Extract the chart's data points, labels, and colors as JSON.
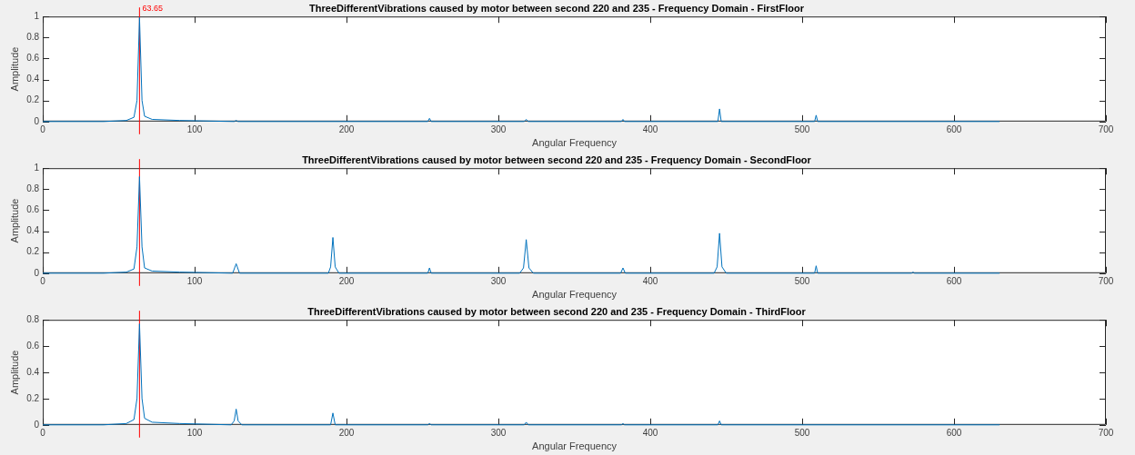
{
  "chart_data": [
    {
      "type": "line",
      "title": "ThreeDifferentVibrations caused by motor between second 220 and 235 - Frequency Domain - FirstFloor",
      "xlabel": "Angular Frequency",
      "ylabel": "Amplitude",
      "xlim": [
        0,
        700
      ],
      "xticks": [
        0,
        100,
        200,
        300,
        400,
        500,
        600,
        700
      ],
      "ylim": [
        0,
        1
      ],
      "yticks": [
        0,
        0.2,
        0.4,
        0.6,
        0.8,
        1
      ],
      "grid": false,
      "legend": false,
      "marker": "none",
      "line_style": "solid",
      "series": [
        {
          "color": "#0072bd",
          "x": [
            0,
            40,
            55,
            60,
            62,
            63.65,
            65.3,
            67,
            72,
            90,
            126,
            127.3,
            128.5,
            253.5,
            254.6,
            255.7,
            317,
            318.3,
            319.6,
            381,
            382,
            383,
            444.5,
            445.6,
            446.7,
            508.2,
            509.2,
            510.2,
            630
          ],
          "values": [
            0,
            0,
            0.01,
            0.04,
            0.2,
            0.99,
            0.2,
            0.05,
            0.02,
            0.01,
            0,
            0.01,
            0,
            0,
            0.03,
            0,
            0,
            0.02,
            0,
            0,
            0.02,
            0,
            0,
            0.12,
            0,
            0,
            0.06,
            0,
            0
          ]
        }
      ],
      "ref_lines": [
        {
          "axis": "x",
          "value": 63.65,
          "color": "#ff0000"
        }
      ],
      "annotations": [
        {
          "text": "63.65",
          "x": 63.65,
          "y": 0.99
        }
      ]
    },
    {
      "type": "line",
      "title": "ThreeDifferentVibrations caused by motor between second 220 and 235 - Frequency Domain - SecondFloor",
      "xlabel": "Angular Frequency",
      "ylabel": "Amplitude",
      "xlim": [
        0,
        700
      ],
      "xticks": [
        0,
        100,
        200,
        300,
        400,
        500,
        600,
        700
      ],
      "ylim": [
        0,
        1
      ],
      "yticks": [
        0,
        0.2,
        0.4,
        0.6,
        0.8,
        1
      ],
      "grid": false,
      "legend": false,
      "marker": "none",
      "line_style": "solid",
      "series": [
        {
          "color": "#0072bd",
          "x": [
            0,
            40,
            55,
            60,
            62,
            63.65,
            65.3,
            67,
            72,
            90,
            125,
            127.3,
            129.5,
            188,
            189.5,
            191,
            192.5,
            195,
            253.5,
            254.6,
            255.7,
            314,
            316.5,
            318.3,
            320.1,
            323,
            380.5,
            382,
            383.5,
            442,
            444,
            445.6,
            447.2,
            450,
            508.2,
            509.2,
            510.2,
            572,
            573,
            574,
            630
          ],
          "values": [
            0,
            0,
            0.01,
            0.04,
            0.25,
            0.92,
            0.25,
            0.05,
            0.02,
            0.01,
            0,
            0.09,
            0,
            0,
            0.06,
            0.34,
            0.06,
            0,
            0,
            0.05,
            0,
            0,
            0.05,
            0.32,
            0.05,
            0,
            0,
            0.05,
            0,
            0,
            0.06,
            0.38,
            0.06,
            0,
            0,
            0.07,
            0,
            0,
            0.01,
            0,
            0
          ]
        }
      ],
      "ref_lines": [
        {
          "axis": "x",
          "value": 63.65,
          "color": "#ff0000"
        }
      ]
    },
    {
      "type": "line",
      "title": "ThreeDifferentVibrations caused by motor between second 220 and 235 - Frequency Domain - ThirdFloor",
      "xlabel": "Angular Frequency",
      "ylabel": "Amplitude",
      "xlim": [
        0,
        700
      ],
      "xticks": [
        0,
        100,
        200,
        300,
        400,
        500,
        600,
        700
      ],
      "ylim": [
        0,
        0.8
      ],
      "yticks": [
        0,
        0.2,
        0.4,
        0.6,
        0.8
      ],
      "grid": false,
      "legend": false,
      "marker": "none",
      "line_style": "solid",
      "series": [
        {
          "color": "#0072bd",
          "x": [
            0,
            40,
            55,
            60,
            62,
            63.65,
            65.3,
            67,
            72,
            90,
            124,
            126,
            127.3,
            128.6,
            131,
            189.5,
            191,
            192.5,
            253.5,
            254.6,
            255.7,
            317,
            318.3,
            319.6,
            381,
            382,
            383,
            444.5,
            445.6,
            446.7,
            630
          ],
          "values": [
            0,
            0,
            0.01,
            0.04,
            0.2,
            0.77,
            0.2,
            0.05,
            0.02,
            0.01,
            0,
            0.03,
            0.12,
            0.03,
            0,
            0,
            0.09,
            0,
            0,
            0.01,
            0,
            0,
            0.02,
            0,
            0,
            0.01,
            0,
            0,
            0.03,
            0,
            0
          ]
        }
      ],
      "ref_lines": [
        {
          "axis": "x",
          "value": 63.65,
          "color": "#ff0000"
        }
      ]
    }
  ]
}
